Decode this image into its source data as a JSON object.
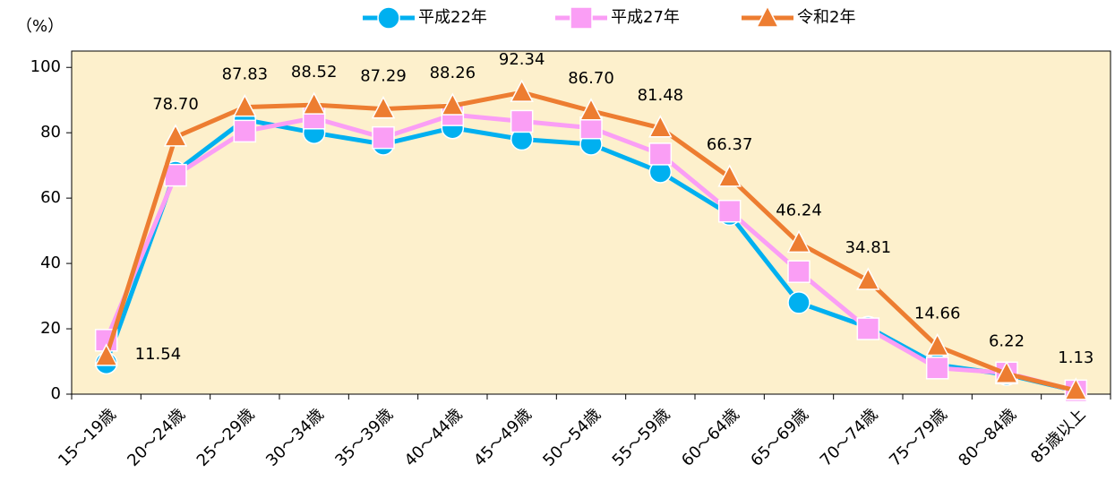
{
  "chart_data": {
    "type": "line",
    "y_label": "（%）",
    "categories": [
      "15～19歳",
      "20～24歳",
      "25～29歳",
      "30～34歳",
      "35～39歳",
      "40～44歳",
      "45～49歳",
      "50～54歳",
      "55～59歳",
      "60～64歳",
      "65～69歳",
      "70～74歳",
      "75～79歳",
      "80～84歳",
      "85歳以上"
    ],
    "series": [
      {
        "name": "平成22年",
        "color": "#00b0f0",
        "marker": "circle",
        "values": [
          9.5,
          68,
          84,
          80,
          76.5,
          81.5,
          78,
          76.5,
          68,
          55,
          28,
          20.5,
          9,
          6,
          1
        ]
      },
      {
        "name": "平成27年",
        "color": "#fa9ef5",
        "marker": "square",
        "values": [
          16.5,
          67,
          80.5,
          84.5,
          78.5,
          85.5,
          83.5,
          81.5,
          73.5,
          56,
          37.5,
          20,
          8,
          6.5,
          1
        ]
      },
      {
        "name": "令和2年",
        "color": "#ed7d31",
        "marker": "triangle",
        "values": [
          11.54,
          78.7,
          87.83,
          88.52,
          87.29,
          88.26,
          92.34,
          86.7,
          81.48,
          66.37,
          46.24,
          34.81,
          14.66,
          6.22,
          1.13
        ],
        "value_labels": [
          "11.54",
          "78.70",
          "87.83",
          "88.52",
          "87.29",
          "88.26",
          "92.34",
          "86.70",
          "81.48",
          "66.37",
          "46.24",
          "34.81",
          "14.66",
          "6.22",
          "1.13"
        ]
      }
    ],
    "ylim": [
      0,
      105
    ],
    "yticks": [
      0,
      20,
      40,
      60,
      80,
      100
    ],
    "plot_background": "#fdf0cc",
    "legend": "top"
  }
}
